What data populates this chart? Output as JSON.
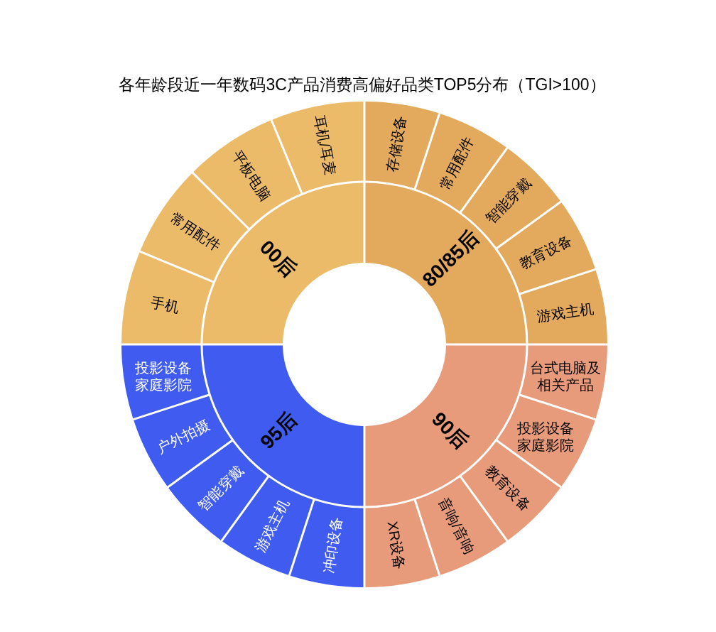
{
  "chart_data": [
    {
      "type": "donut",
      "title": "各年龄段近一年数码3C产品消费高偏好品类TOP5分布（TGI>100）",
      "categories": [
        "80/85后",
        "90后",
        "95后",
        "00后"
      ],
      "values": [
        25,
        25,
        25,
        25
      ],
      "colors": [
        "#e3aa5d",
        "#e89b7b",
        "#405cf0",
        "#ebbb6a"
      ]
    },
    {
      "type": "other",
      "categories": [
        "存储设备",
        "常用配件",
        "智能穿戴",
        "教育设备",
        "游戏主机",
        "台式电脑及相关产品",
        "投影设备家庭影院",
        "教育设备",
        "音响/音响",
        "XR设备",
        "冲印设备",
        "游戏主机",
        "智能穿戴",
        "户外拍摄",
        "投影设备家庭影院",
        "手机",
        "常用配件",
        "平板电脑",
        "耳机/耳麦"
      ],
      "colors": [
        "#e3aa5d",
        "#e3aa5d",
        "#e3aa5d",
        "#e3aa5d",
        "#e3aa5d",
        "#e89b7b",
        "#e89b7b",
        "#e89b7b",
        "#e89b7b",
        "#e89b7b",
        "#405cf0",
        "#405cf0",
        "#405cf0",
        "#405cf0",
        "#405cf0",
        "#ebbb6a",
        "#ebbb6a",
        "#ebbb6a",
        "#ebbb6a"
      ]
    }
  ]
}
